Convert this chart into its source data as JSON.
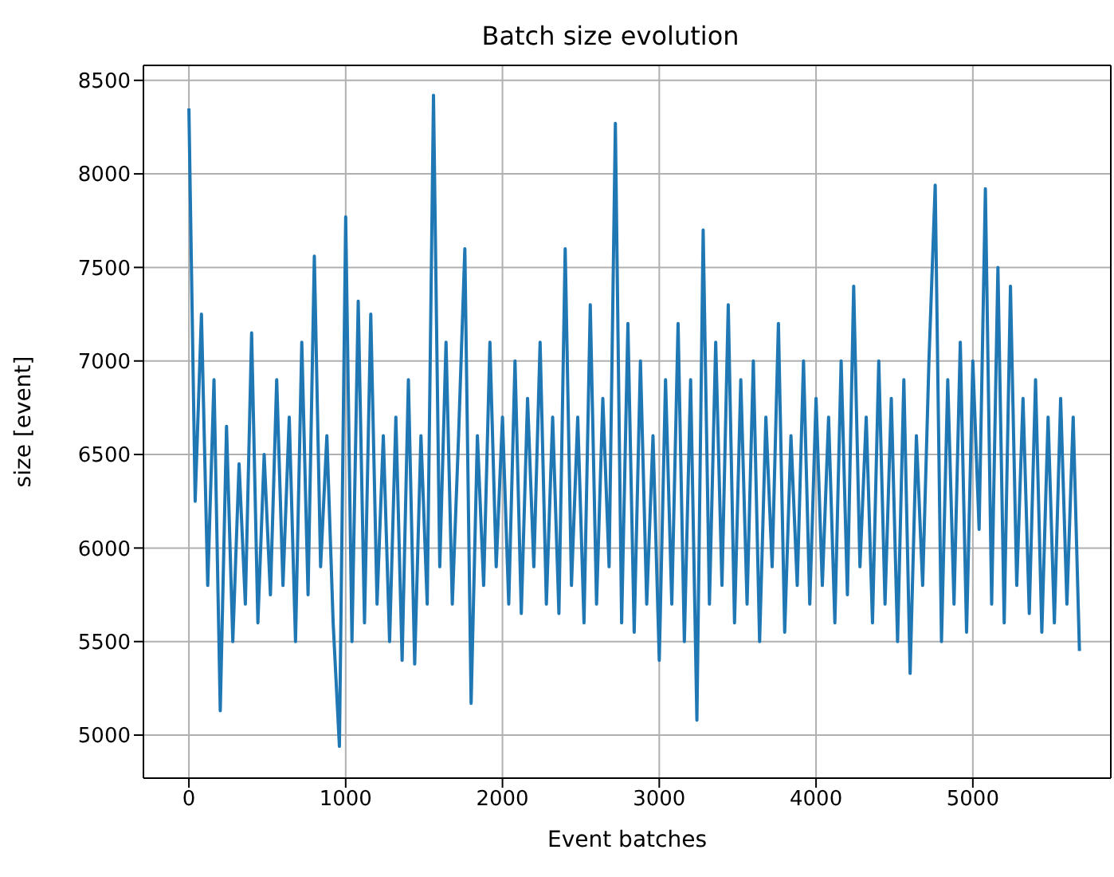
{
  "chart_data": {
    "type": "line",
    "title": "Batch size evolution",
    "xlabel": "Event batches",
    "ylabel": "size [event]",
    "x": [
      0,
      40,
      80,
      120,
      160,
      200,
      240,
      280,
      320,
      360,
      400,
      440,
      480,
      520,
      560,
      600,
      640,
      680,
      720,
      760,
      800,
      840,
      880,
      920,
      960,
      1000,
      1040,
      1080,
      1120,
      1160,
      1200,
      1240,
      1280,
      1320,
      1360,
      1400,
      1440,
      1480,
      1520,
      1560,
      1600,
      1640,
      1680,
      1720,
      1760,
      1800,
      1840,
      1880,
      1920,
      1960,
      2000,
      2040,
      2080,
      2120,
      2160,
      2200,
      2240,
      2280,
      2320,
      2360,
      2400,
      2440,
      2480,
      2520,
      2560,
      2600,
      2640,
      2680,
      2720,
      2760,
      2800,
      2840,
      2880,
      2920,
      2960,
      3000,
      3040,
      3080,
      3120,
      3160,
      3200,
      3240,
      3280,
      3320,
      3360,
      3400,
      3440,
      3480,
      3520,
      3560,
      3600,
      3640,
      3680,
      3720,
      3760,
      3800,
      3840,
      3880,
      3920,
      3960,
      4000,
      4040,
      4080,
      4120,
      4160,
      4200,
      4240,
      4280,
      4320,
      4360,
      4400,
      4440,
      4480,
      4520,
      4560,
      4600,
      4640,
      4680,
      4720,
      4760,
      4800,
      4840,
      4880,
      4920,
      4960,
      5000,
      5040,
      5080,
      5120,
      5160,
      5200,
      5240,
      5280,
      5320,
      5360,
      5400,
      5440,
      5480,
      5520,
      5560,
      5600,
      5640,
      5680
    ],
    "series": [
      {
        "color": "#1f77b4",
        "values": [
          8350,
          6250,
          7250,
          5800,
          6900,
          5130,
          6650,
          5500,
          6450,
          5700,
          7150,
          5600,
          6500,
          5750,
          6900,
          5800,
          6700,
          5500,
          7100,
          5750,
          7560,
          5900,
          6600,
          5600,
          4940,
          7770,
          5500,
          7320,
          5600,
          7250,
          5700,
          6600,
          5500,
          6700,
          5400,
          6900,
          5380,
          6600,
          5700,
          8420,
          5900,
          7100,
          5700,
          6600,
          7600,
          5170,
          6600,
          5800,
          7100,
          5900,
          6700,
          5700,
          7000,
          5650,
          6800,
          5900,
          7100,
          5700,
          6700,
          5650,
          7600,
          5800,
          6700,
          5600,
          7300,
          5700,
          6800,
          5900,
          8270,
          5600,
          7200,
          5550,
          7000,
          5700,
          6600,
          5400,
          6900,
          5700,
          7200,
          5500,
          6900,
          5080,
          7700,
          5700,
          7100,
          5800,
          7300,
          5600,
          6900,
          5700,
          7000,
          5500,
          6700,
          5900,
          7200,
          5550,
          6600,
          5800,
          7000,
          5700,
          6800,
          5800,
          6700,
          5600,
          7000,
          5750,
          7400,
          5900,
          6700,
          5600,
          7000,
          5700,
          6800,
          5500,
          6900,
          5330,
          6600,
          5800,
          7000,
          7940,
          5500,
          6900,
          5700,
          7100,
          5550,
          7000,
          6100,
          7920,
          5700,
          7500,
          5600,
          7400,
          5800,
          6800,
          5650,
          6900,
          5550,
          6700,
          5600,
          6800,
          5700,
          6700,
          5450
        ]
      }
    ],
    "xlim": [
      -290,
      5880
    ],
    "xticks": [
      0,
      1000,
      2000,
      3000,
      4000,
      5000
    ],
    "ylim": [
      4770,
      8580
    ],
    "yticks": [
      5000,
      5500,
      6000,
      6500,
      7000,
      7500,
      8000,
      8500
    ],
    "grid": true,
    "line_style": "solid",
    "marker": "none"
  }
}
